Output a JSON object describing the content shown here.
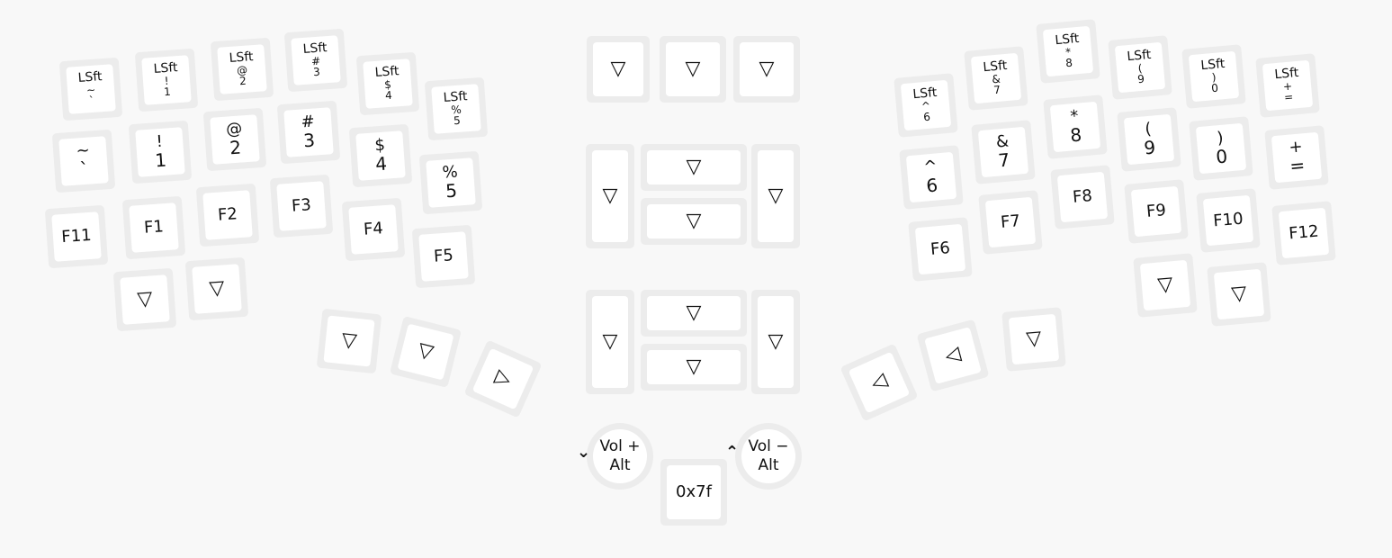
{
  "keyboard": {
    "left": {
      "shifted_row": [
        [
          "LSft",
          "~",
          "`"
        ],
        [
          "LSft",
          "!",
          "1"
        ],
        [
          "LSft",
          "@",
          "2"
        ],
        [
          "LSft",
          "#",
          "3"
        ],
        [
          "LSft",
          "$",
          "4"
        ],
        [
          "LSft",
          "%",
          "5"
        ]
      ],
      "number_row": [
        [
          "~",
          "`"
        ],
        [
          "!",
          "1"
        ],
        [
          "@",
          "2"
        ],
        [
          "#",
          "3"
        ],
        [
          "$",
          "4"
        ],
        [
          "%",
          "5"
        ]
      ],
      "function_row": [
        "F11",
        "F1",
        "F2",
        "F3",
        "F4",
        "F5"
      ],
      "bottom_row": [
        "▽",
        "▽"
      ],
      "thumb_row": [
        "▽",
        "▽",
        "▷"
      ]
    },
    "right": {
      "shifted_row": [
        [
          "LSft",
          "^",
          "6"
        ],
        [
          "LSft",
          "&",
          "7"
        ],
        [
          "LSft",
          "*",
          "8"
        ],
        [
          "LSft",
          "(",
          "9"
        ],
        [
          "LSft",
          ")",
          "0"
        ],
        [
          "LSft",
          "+",
          "="
        ]
      ],
      "number_row": [
        [
          "^",
          "6"
        ],
        [
          "&",
          "7"
        ],
        [
          "*",
          "8"
        ],
        [
          "(",
          "9"
        ],
        [
          ")",
          "0"
        ],
        [
          "+",
          "="
        ]
      ],
      "function_row": [
        "F6",
        "F7",
        "F8",
        "F9",
        "F10",
        "F12"
      ],
      "bottom_row": [
        "▽",
        "▽"
      ],
      "thumb_row": [
        "◁",
        "◁",
        "▽"
      ]
    },
    "center": {
      "top_row": [
        "▽",
        "▽",
        "▽"
      ],
      "cluster1": [
        "▽",
        "▽",
        "▽",
        "▽"
      ],
      "cluster2": [
        "▽",
        "▽",
        "▽",
        "▽"
      ],
      "encoder_left": {
        "lines": [
          "Vol +",
          "Alt"
        ],
        "arrow": "⌄"
      },
      "encoder_right": {
        "lines": [
          "Vol −",
          "Alt"
        ],
        "arrow": "⌃"
      },
      "center_key": "0x7f"
    }
  }
}
